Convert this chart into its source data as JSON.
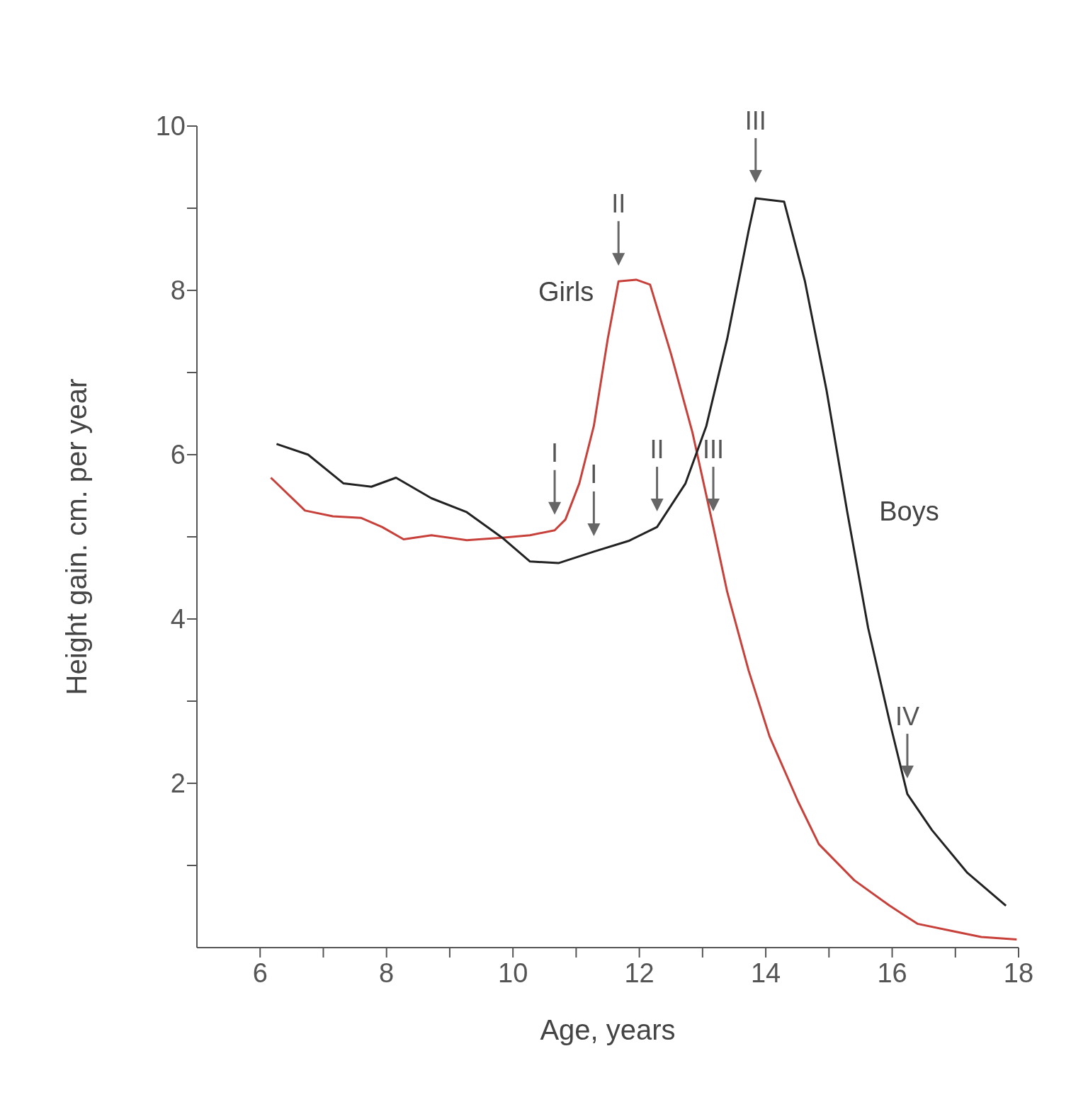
{
  "chart_data": {
    "type": "line",
    "xlabel": "Age, years",
    "ylabel": "Height gain. cm. per year",
    "xlim": [
      5,
      18
    ],
    "ylim": [
      0,
      10
    ],
    "xticks": [
      6,
      {
        "value": 7,
        "label": null
      },
      8,
      {
        "value": 9,
        "label": null
      },
      10,
      {
        "value": 11,
        "label": null
      },
      12,
      {
        "value": 13,
        "label": null
      },
      14,
      {
        "value": 15,
        "label": null
      },
      16,
      {
        "value": 17,
        "label": null
      },
      18
    ],
    "yticks": [
      {
        "value": 1,
        "label": null
      },
      2,
      {
        "value": 3,
        "label": null
      },
      4,
      {
        "value": 5,
        "label": null
      },
      6,
      {
        "value": 7,
        "label": null
      },
      8,
      {
        "value": 9,
        "label": null
      },
      10
    ],
    "grid": false,
    "legend": false,
    "marker": "none",
    "line_style": "solid",
    "series": [
      {
        "name": "Girls",
        "color": "#c8403a",
        "x": [
          6.17,
          6.71,
          7.15,
          7.6,
          7.93,
          8.27,
          8.71,
          9.27,
          9.83,
          10.27,
          10.66,
          10.83,
          11.05,
          11.28,
          11.5,
          11.67,
          11.95,
          12.17,
          12.5,
          12.84,
          13.17,
          13.39,
          13.73,
          14.06,
          14.51,
          14.84,
          15.4,
          15.96,
          16.4,
          16.96,
          17.41,
          17.97
        ],
        "values": [
          5.72,
          5.32,
          5.25,
          5.23,
          5.12,
          4.97,
          5.02,
          4.96,
          4.99,
          5.02,
          5.08,
          5.21,
          5.65,
          6.35,
          7.41,
          8.11,
          8.13,
          8.07,
          7.23,
          6.27,
          5.12,
          4.33,
          3.37,
          2.57,
          1.78,
          1.26,
          0.82,
          0.51,
          0.29,
          0.2,
          0.13,
          0.1
        ]
      },
      {
        "name": "Boys",
        "color": "#222222",
        "x": [
          6.26,
          6.76,
          7.32,
          7.76,
          8.15,
          8.71,
          9.27,
          9.83,
          10.27,
          10.72,
          11.28,
          11.83,
          12.28,
          12.73,
          13.06,
          13.39,
          13.73,
          13.84,
          14.29,
          14.62,
          14.96,
          15.29,
          15.62,
          15.96,
          16.24,
          16.63,
          17.19,
          17.8
        ],
        "values": [
          6.13,
          6.0,
          5.65,
          5.61,
          5.72,
          5.47,
          5.3,
          4.99,
          4.7,
          4.68,
          4.82,
          4.95,
          5.12,
          5.65,
          6.35,
          7.41,
          8.73,
          9.12,
          9.08,
          8.11,
          6.79,
          5.3,
          3.89,
          2.75,
          1.87,
          1.43,
          0.91,
          0.51
        ]
      }
    ],
    "annotations": [
      {
        "text": "I",
        "x": 10.66,
        "y": 5.08
      },
      {
        "text": "II",
        "x": 11.67,
        "y": 8.11
      },
      {
        "text": "III",
        "x": 13.17,
        "y": 5.12
      },
      {
        "text": "I",
        "x": 11.28,
        "y": 4.82
      },
      {
        "text": "II",
        "x": 12.28,
        "y": 5.12
      },
      {
        "text": "III",
        "x": 13.84,
        "y": 9.12
      },
      {
        "text": "IV",
        "x": 16.24,
        "y": 1.87
      }
    ]
  }
}
